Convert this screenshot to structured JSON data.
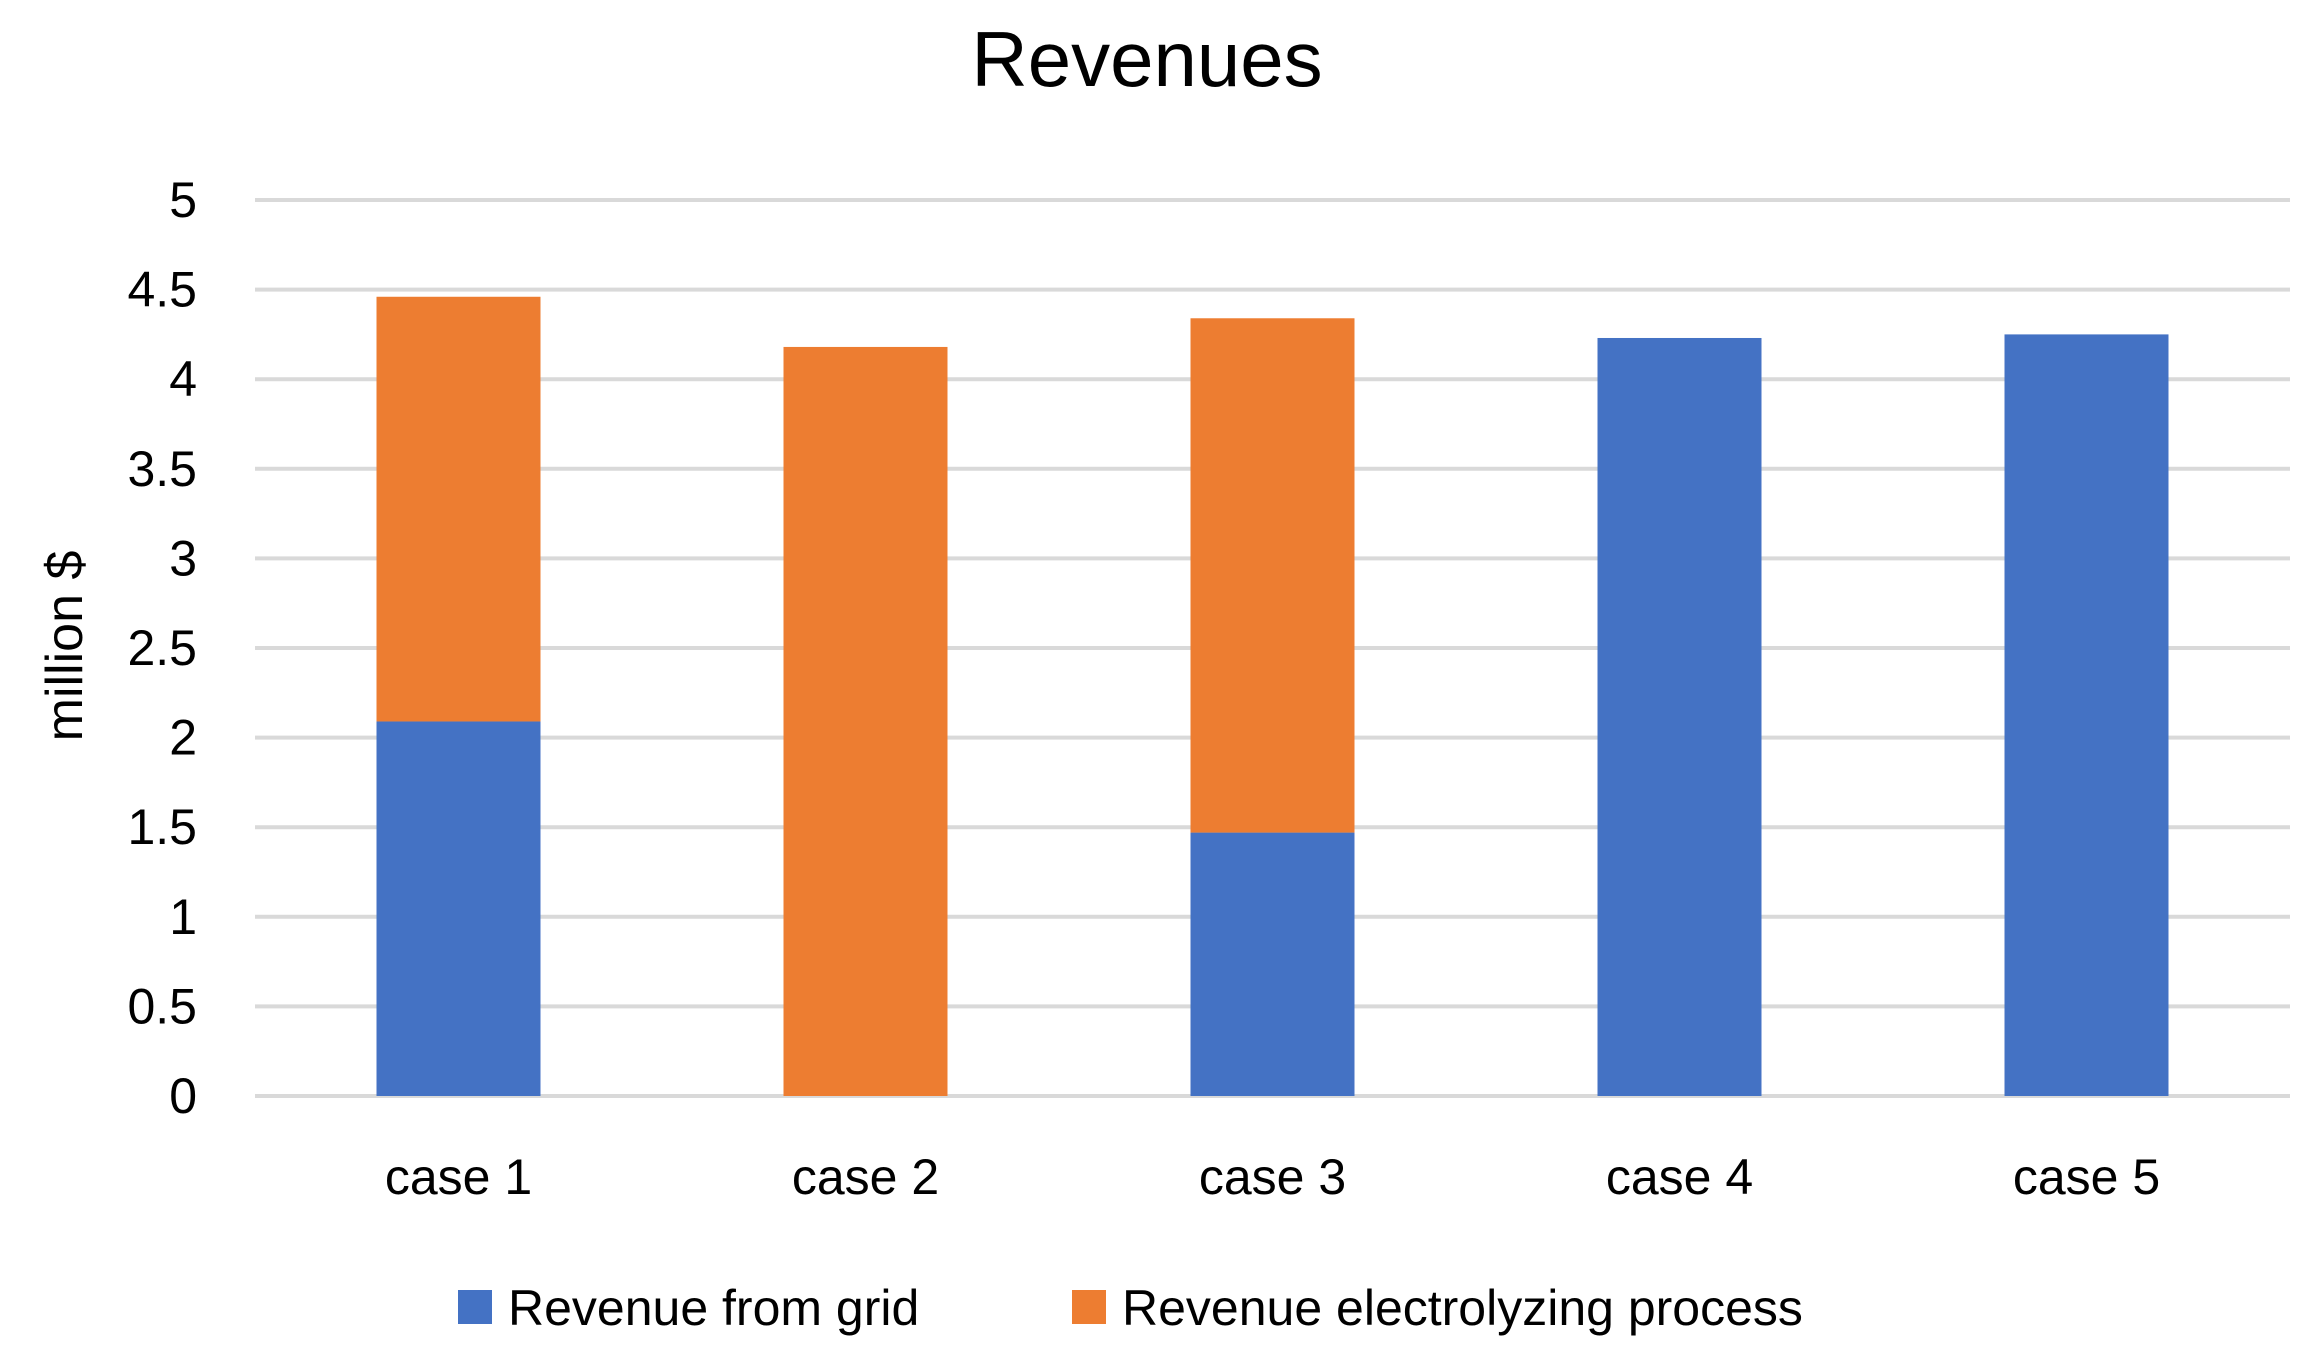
{
  "chart_data": {
    "type": "bar",
    "stacked": true,
    "title": "Revenues",
    "xlabel": "",
    "ylabel": "million $",
    "ylim": [
      0,
      5
    ],
    "yticks": [
      0,
      0.5,
      1,
      1.5,
      2,
      2.5,
      3,
      3.5,
      4,
      4.5,
      5
    ],
    "ytick_labels": [
      "0",
      "0.5",
      "1",
      "1.5",
      "2",
      "2.5",
      "3",
      "3.5",
      "4",
      "4.5",
      "5"
    ],
    "grid": true,
    "legend_position": "bottom",
    "categories": [
      "case 1",
      "case 2",
      "case 3",
      "case 4",
      "case 5"
    ],
    "series": [
      {
        "name": "Revenue from grid",
        "color": "#4472C4",
        "values": [
          2.09,
          0,
          1.47,
          4.23,
          4.25
        ]
      },
      {
        "name": "Revenue electrolyzing process",
        "color": "#ED7D31",
        "values": [
          2.37,
          4.18,
          2.87,
          0,
          0
        ]
      }
    ]
  }
}
